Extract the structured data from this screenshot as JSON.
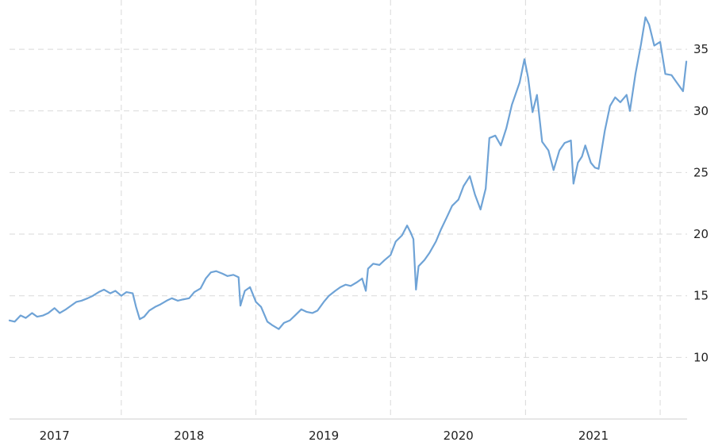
{
  "chart_data": {
    "type": "line",
    "title": "",
    "xlabel": "",
    "ylabel": "",
    "y_axis_position": "right",
    "grid": true,
    "grid_style": "dashed",
    "line_color": "#6fa3d6",
    "grid_color": "#d9d9d9",
    "xlim": [
      "2016-09-01",
      "2021-09-12"
    ],
    "ylim": [
      5,
      39
    ],
    "x_ticks": [
      {
        "date": "2017-01-01",
        "label": "2017"
      },
      {
        "date": "2018-01-01",
        "label": "2018"
      },
      {
        "date": "2019-01-01",
        "label": "2019"
      },
      {
        "date": "2020-01-01",
        "label": "2020"
      },
      {
        "date": "2021-01-01",
        "label": "2021"
      }
    ],
    "x_gridlines": [
      "2017-07-01",
      "2018-07-01",
      "2019-07-01",
      "2020-07-01",
      "2021-07-01"
    ],
    "y_ticks": [
      10,
      15,
      20,
      25,
      30,
      35
    ],
    "series": [
      {
        "name": "",
        "points": [
          [
            "2016-09-01",
            13.0
          ],
          [
            "2016-09-15",
            12.9
          ],
          [
            "2016-10-01",
            13.4
          ],
          [
            "2016-10-15",
            13.2
          ],
          [
            "2016-11-01",
            13.6
          ],
          [
            "2016-11-15",
            13.3
          ],
          [
            "2016-12-01",
            13.4
          ],
          [
            "2016-12-15",
            13.6
          ],
          [
            "2017-01-01",
            14.0
          ],
          [
            "2017-01-15",
            13.6
          ],
          [
            "2017-02-01",
            13.9
          ],
          [
            "2017-02-15",
            14.2
          ],
          [
            "2017-03-01",
            14.5
          ],
          [
            "2017-03-15",
            14.6
          ],
          [
            "2017-04-01",
            14.8
          ],
          [
            "2017-04-15",
            15.0
          ],
          [
            "2017-05-01",
            15.3
          ],
          [
            "2017-05-15",
            15.5
          ],
          [
            "2017-06-01",
            15.2
          ],
          [
            "2017-06-15",
            15.4
          ],
          [
            "2017-07-01",
            15.0
          ],
          [
            "2017-07-15",
            15.3
          ],
          [
            "2017-08-01",
            15.2
          ],
          [
            "2017-08-10",
            14.1
          ],
          [
            "2017-08-20",
            13.1
          ],
          [
            "2017-09-01",
            13.3
          ],
          [
            "2017-09-15",
            13.8
          ],
          [
            "2017-10-01",
            14.1
          ],
          [
            "2017-10-15",
            14.3
          ],
          [
            "2017-11-01",
            14.6
          ],
          [
            "2017-11-15",
            14.8
          ],
          [
            "2017-12-01",
            14.6
          ],
          [
            "2017-12-15",
            14.7
          ],
          [
            "2018-01-01",
            14.8
          ],
          [
            "2018-01-15",
            15.3
          ],
          [
            "2018-02-01",
            15.6
          ],
          [
            "2018-02-15",
            16.4
          ],
          [
            "2018-03-01",
            16.9
          ],
          [
            "2018-03-15",
            17.0
          ],
          [
            "2018-04-01",
            16.8
          ],
          [
            "2018-04-15",
            16.6
          ],
          [
            "2018-05-01",
            16.7
          ],
          [
            "2018-05-15",
            16.5
          ],
          [
            "2018-05-20",
            14.2
          ],
          [
            "2018-06-01",
            15.4
          ],
          [
            "2018-06-15",
            15.7
          ],
          [
            "2018-07-01",
            14.5
          ],
          [
            "2018-07-15",
            14.1
          ],
          [
            "2018-08-01",
            12.9
          ],
          [
            "2018-08-15",
            12.6
          ],
          [
            "2018-09-01",
            12.3
          ],
          [
            "2018-09-15",
            12.8
          ],
          [
            "2018-10-01",
            13.0
          ],
          [
            "2018-10-15",
            13.4
          ],
          [
            "2018-11-01",
            13.9
          ],
          [
            "2018-11-15",
            13.7
          ],
          [
            "2018-12-01",
            13.6
          ],
          [
            "2018-12-15",
            13.8
          ],
          [
            "2019-01-01",
            14.5
          ],
          [
            "2019-01-15",
            15.0
          ],
          [
            "2019-02-01",
            15.4
          ],
          [
            "2019-02-15",
            15.7
          ],
          [
            "2019-03-01",
            15.9
          ],
          [
            "2019-03-15",
            15.8
          ],
          [
            "2019-04-01",
            16.1
          ],
          [
            "2019-04-15",
            16.4
          ],
          [
            "2019-04-25",
            15.4
          ],
          [
            "2019-05-01",
            17.2
          ],
          [
            "2019-05-15",
            17.6
          ],
          [
            "2019-06-01",
            17.5
          ],
          [
            "2019-06-15",
            17.9
          ],
          [
            "2019-07-01",
            18.3
          ],
          [
            "2019-07-15",
            19.4
          ],
          [
            "2019-08-01",
            19.9
          ],
          [
            "2019-08-15",
            20.7
          ],
          [
            "2019-08-25",
            20.1
          ],
          [
            "2019-09-01",
            19.6
          ],
          [
            "2019-09-08",
            15.5
          ],
          [
            "2019-09-15",
            17.4
          ],
          [
            "2019-10-01",
            17.9
          ],
          [
            "2019-10-15",
            18.5
          ],
          [
            "2019-11-01",
            19.4
          ],
          [
            "2019-11-15",
            20.4
          ],
          [
            "2019-12-01",
            21.4
          ],
          [
            "2019-12-15",
            22.3
          ],
          [
            "2020-01-01",
            22.8
          ],
          [
            "2020-01-15",
            23.9
          ],
          [
            "2020-02-01",
            24.7
          ],
          [
            "2020-02-15",
            23.2
          ],
          [
            "2020-03-01",
            22.0
          ],
          [
            "2020-03-15",
            23.7
          ],
          [
            "2020-03-25",
            27.8
          ],
          [
            "2020-04-10",
            28.0
          ],
          [
            "2020-04-25",
            27.2
          ],
          [
            "2020-05-10",
            28.6
          ],
          [
            "2020-05-25",
            30.5
          ],
          [
            "2020-06-15",
            32.3
          ],
          [
            "2020-06-28",
            34.2
          ],
          [
            "2020-07-08",
            32.7
          ],
          [
            "2020-07-20",
            29.9
          ],
          [
            "2020-08-01",
            31.3
          ],
          [
            "2020-08-15",
            27.5
          ],
          [
            "2020-09-01",
            26.8
          ],
          [
            "2020-09-15",
            25.2
          ],
          [
            "2020-10-01",
            26.8
          ],
          [
            "2020-10-15",
            27.4
          ],
          [
            "2020-11-01",
            27.6
          ],
          [
            "2020-11-08",
            24.1
          ],
          [
            "2020-11-20",
            25.8
          ],
          [
            "2020-12-01",
            26.3
          ],
          [
            "2020-12-10",
            27.2
          ],
          [
            "2020-12-25",
            25.8
          ],
          [
            "2021-01-05",
            25.4
          ],
          [
            "2021-01-15",
            25.3
          ],
          [
            "2021-02-01",
            28.4
          ],
          [
            "2021-02-15",
            30.4
          ],
          [
            "2021-03-01",
            31.1
          ],
          [
            "2021-03-15",
            30.7
          ],
          [
            "2021-04-01",
            31.3
          ],
          [
            "2021-04-10",
            30.0
          ],
          [
            "2021-04-25",
            33.0
          ],
          [
            "2021-05-10",
            35.4
          ],
          [
            "2021-05-22",
            37.6
          ],
          [
            "2021-06-01",
            37.0
          ],
          [
            "2021-06-15",
            35.3
          ],
          [
            "2021-07-01",
            35.6
          ],
          [
            "2021-07-15",
            33.0
          ],
          [
            "2021-08-01",
            32.9
          ],
          [
            "2021-08-15",
            32.3
          ],
          [
            "2021-09-01",
            31.6
          ],
          [
            "2021-09-10",
            34.0
          ]
        ]
      }
    ]
  }
}
